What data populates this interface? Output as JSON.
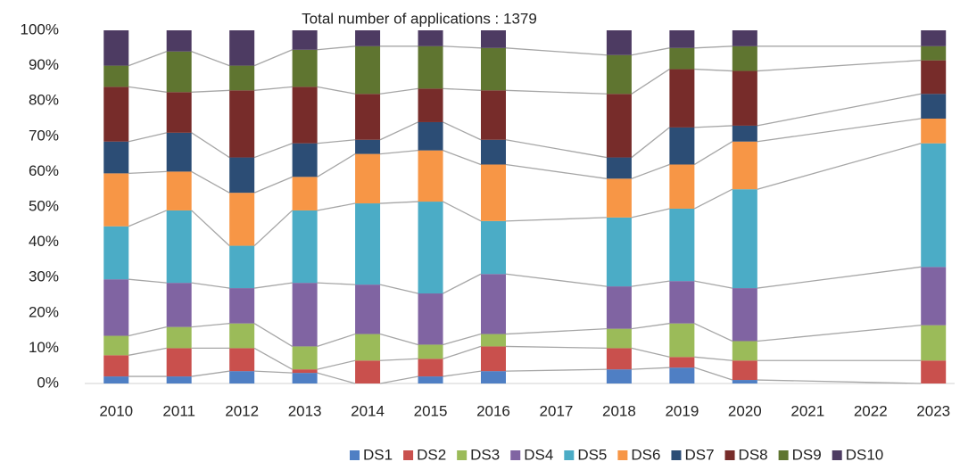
{
  "chart_data": {
    "type": "stacked_bar_100",
    "title": "Total number of applications : 1379",
    "categories": [
      "2010",
      "2011",
      "2012",
      "2013",
      "2014",
      "2015",
      "2016",
      "2017",
      "2018",
      "2019",
      "2020",
      "2021",
      "2022",
      "2023"
    ],
    "series": [
      {
        "name": "DS1",
        "color": "#4f7fc4",
        "values": [
          2,
          2,
          3.5,
          3,
          0,
          2,
          3.5,
          null,
          4,
          4.5,
          1,
          null,
          null,
          0
        ]
      },
      {
        "name": "DS2",
        "color": "#c9504d",
        "values": [
          6,
          8,
          6.5,
          1,
          6.5,
          5,
          7,
          null,
          6,
          3,
          5.5,
          null,
          null,
          6.5
        ]
      },
      {
        "name": "DS3",
        "color": "#9bbb59",
        "values": [
          5.5,
          6,
          7,
          6.5,
          7.5,
          4,
          3.5,
          null,
          5.5,
          9.5,
          5.5,
          null,
          null,
          10
        ]
      },
      {
        "name": "DS4",
        "color": "#8064a2",
        "values": [
          16,
          12.5,
          10,
          18,
          14,
          14.5,
          17,
          null,
          12,
          12,
          15,
          null,
          null,
          16.5
        ]
      },
      {
        "name": "DS5",
        "color": "#4bacc6",
        "values": [
          15,
          20.5,
          12,
          20.5,
          23,
          26,
          15,
          null,
          19.5,
          20.5,
          28,
          null,
          null,
          35
        ]
      },
      {
        "name": "DS6",
        "color": "#f79646",
        "values": [
          15,
          11,
          15,
          9.5,
          14,
          14.5,
          16,
          null,
          11,
          12.5,
          13.5,
          null,
          null,
          7
        ]
      },
      {
        "name": "DS7",
        "color": "#2c4d75",
        "values": [
          9,
          11,
          10,
          9.5,
          4,
          8,
          7,
          null,
          6,
          10.5,
          4.5,
          null,
          null,
          7
        ]
      },
      {
        "name": "DS8",
        "color": "#772c2a",
        "values": [
          15.5,
          11.5,
          19,
          16,
          13,
          9.5,
          14,
          null,
          18,
          16.5,
          15.5,
          null,
          null,
          9.5
        ]
      },
      {
        "name": "DS9",
        "color": "#5f7530",
        "values": [
          6,
          11.5,
          7,
          10.5,
          13.5,
          12,
          12,
          null,
          11,
          6,
          7,
          null,
          null,
          4
        ]
      },
      {
        "name": "DS10",
        "color": "#4d3b62",
        "values": [
          10,
          6,
          10,
          5.5,
          4.5,
          4.5,
          5,
          null,
          7,
          5,
          4.5,
          null,
          null,
          4.5
        ]
      }
    ],
    "ylim": [
      0,
      100
    ],
    "yticks": [
      {
        "value": 0,
        "label": "0%"
      },
      {
        "value": 10,
        "label": "10%"
      },
      {
        "value": 20,
        "label": "20%"
      },
      {
        "value": 30,
        "label": "30%"
      },
      {
        "value": 40,
        "label": "40%"
      },
      {
        "value": 50,
        "label": "50%"
      },
      {
        "value": 60,
        "label": "60%"
      },
      {
        "value": 70,
        "label": "70%"
      },
      {
        "value": 80,
        "label": "80%"
      },
      {
        "value": 90,
        "label": "90%"
      },
      {
        "value": 100,
        "label": "100%"
      }
    ],
    "legend": "bottom",
    "series_lines": true
  }
}
